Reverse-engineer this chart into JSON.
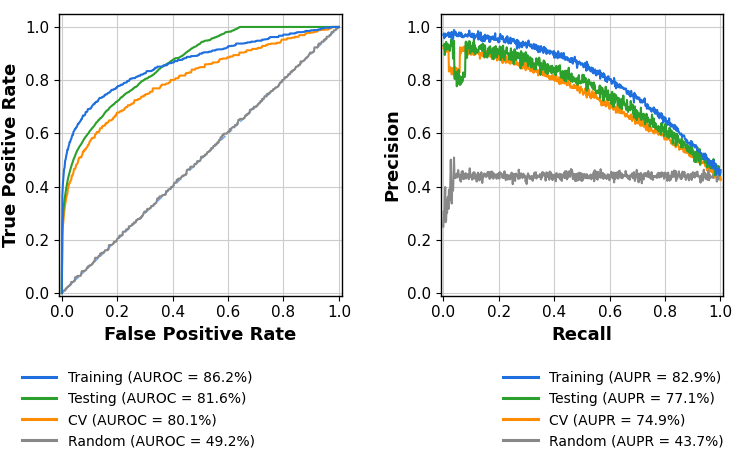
{
  "colors": {
    "training": "#1f6fde",
    "testing": "#2ca02c",
    "cv": "#ff8c00",
    "random": "#888888"
  },
  "legend_labels_roc": [
    "Training (AUROC = 86.2%)",
    "Testing (AUROC = 81.6%)",
    "CV (AUROC = 80.1%)",
    "Random (AUROC = 49.2%)"
  ],
  "legend_labels_pr": [
    "Training (AUPR = 82.9%)",
    "Testing (AUPR = 77.1%)",
    "CV (AUPR = 74.9%)",
    "Random (AUPR = 43.7%)"
  ],
  "xlabel_roc": "False Positive Rate",
  "ylabel_roc": "True Positive Rate",
  "xlabel_pr": "Recall",
  "ylabel_pr": "Precision",
  "axis_fontsize": 11,
  "label_fontsize": 13,
  "legend_fontsize": 10,
  "linewidth": 1.5
}
